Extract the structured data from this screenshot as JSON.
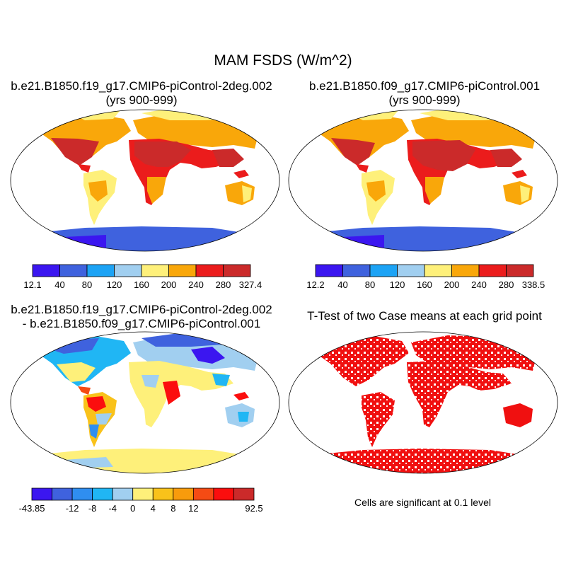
{
  "main_title": "MAM FSDS (W/m^2)",
  "panels": {
    "top_left": {
      "title_line1": "b.e21.B1850.f19_g17.CMIP6-piControl-2deg.002",
      "title_line2": "(yrs 900-999)",
      "colorbar": {
        "colors": [
          "#3b16f0",
          "#3f62de",
          "#1ca3f5",
          "#a1cff0",
          "#fef07a",
          "#f9a70a",
          "#eb1c1c",
          "#cb2a2a"
        ],
        "labels": [
          "12.1",
          "40",
          "80",
          "120",
          "160",
          "200",
          "240",
          "280",
          "327.4"
        ]
      }
    },
    "top_right": {
      "title_line1": "b.e21.B1850.f09_g17.CMIP6-piControl.001",
      "title_line2": "(yrs 900-999)",
      "colorbar": {
        "colors": [
          "#3b16f0",
          "#3f62de",
          "#1ca3f5",
          "#a1cff0",
          "#fef07a",
          "#f9a70a",
          "#eb1c1c",
          "#cb2a2a"
        ],
        "labels": [
          "12.2",
          "40",
          "80",
          "120",
          "160",
          "200",
          "240",
          "280",
          "338.5"
        ]
      }
    },
    "bottom_left": {
      "title_line1": "b.e21.B1850.f19_g17.CMIP6-piControl-2deg.002",
      "title_line2": "- b.e21.B1850.f09_g17.CMIP6-piControl.001",
      "colorbar": {
        "colors": [
          "#3b16f0",
          "#3f62de",
          "#2f8ef0",
          "#20b6f4",
          "#a1cff0",
          "#fef07a",
          "#f9c21a",
          "#f89b0c",
          "#f54b14",
          "#fb0e0e",
          "#cb2a2a"
        ],
        "labels": [
          "-43.85",
          "",
          "-12",
          "-8",
          "-4",
          "0",
          "4",
          "8",
          "12",
          "",
          "",
          "92.5"
        ]
      }
    },
    "bottom_right": {
      "title_line1": "T-Test of two Case means at each grid point",
      "note": "Cells are significant at 0.1 level",
      "significant_color": "#f01010"
    }
  }
}
